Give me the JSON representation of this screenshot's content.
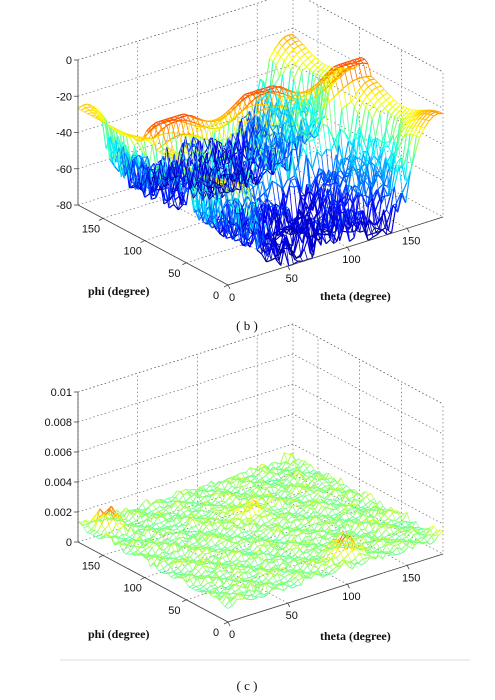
{
  "chart_data": [
    {
      "type": "surface",
      "panel": "(b)",
      "xlabel": "theta (degree)",
      "ylabel": "phi (degree)",
      "zlabel": "",
      "x_ticks": [
        0,
        50,
        100,
        150
      ],
      "y_ticks": [
        0,
        50,
        100,
        150
      ],
      "z_ticks": [
        0,
        -20,
        -40,
        -60,
        -80
      ],
      "xlim": [
        0,
        180
      ],
      "ylim": [
        0,
        180
      ],
      "zlim": [
        -80,
        0
      ],
      "grid": true,
      "colormap": "jet",
      "description_values": {
        "ridge_level": -20,
        "floor_level": -80
      }
    },
    {
      "type": "surface",
      "panel": "(c)",
      "xlabel": "theta (degree)",
      "ylabel": "phi (degree)",
      "zlabel": "",
      "x_ticks": [
        0,
        50,
        100,
        150
      ],
      "y_ticks": [
        0,
        50,
        100,
        150
      ],
      "z_ticks": [
        0,
        0.002,
        0.004,
        0.006,
        0.008,
        0.01
      ],
      "z_tick_labels": [
        "0",
        "0.002",
        "0.004",
        "0.006",
        "0.008",
        "0.01"
      ],
      "xlim": [
        0,
        180
      ],
      "ylim": [
        0,
        180
      ],
      "zlim": [
        0,
        0.01
      ],
      "grid": true,
      "colormap": "jet"
    }
  ],
  "captions": [
    "( b )",
    "( c )"
  ],
  "colors": {
    "jet": [
      "#000080",
      "#0000ff",
      "#00a0ff",
      "#00ffff",
      "#80ff80",
      "#ffff00",
      "#ff8000",
      "#ff0000",
      "#800000"
    ]
  }
}
